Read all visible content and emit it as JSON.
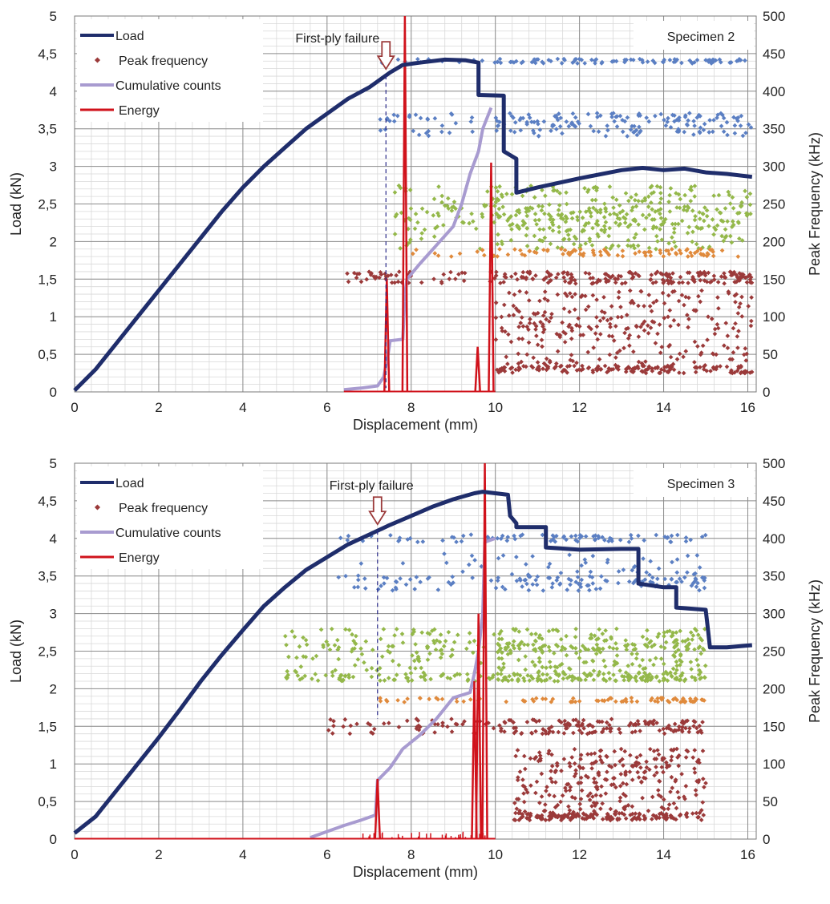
{
  "chart_data": [
    {
      "type": "scatter",
      "specimen_label": "Specimen 2",
      "xlabel": "Displacement (mm)",
      "ylabel": "Load (kN)",
      "y2label": "Peak Frequency (kHz)",
      "xlim": [
        0,
        16.2
      ],
      "ylim": [
        0,
        5
      ],
      "y2lim": [
        0,
        500
      ],
      "xticks": [
        0,
        2,
        4,
        6,
        8,
        10,
        12,
        14,
        16
      ],
      "yticks": [
        "0",
        "0,5",
        "1",
        "1,5",
        "2",
        "2,5",
        "3",
        "3,5",
        "4",
        "4,5",
        "5"
      ],
      "y2ticks": [
        "0",
        "50",
        "100",
        "150",
        "200",
        "250",
        "300",
        "350",
        "400",
        "450",
        "500"
      ],
      "grid": true,
      "legend_position": "top-left",
      "legend": [
        "Load",
        "Peak frequency",
        "Cumulative counts",
        "Energy"
      ],
      "annotation": {
        "text": "First-ply failure",
        "x": 7.4
      },
      "load": {
        "x": [
          0,
          0.5,
          1,
          1.5,
          2,
          2.5,
          3,
          3.5,
          4,
          4.5,
          5,
          5.5,
          6,
          6.5,
          7,
          7.5,
          7.8,
          8.2,
          8.8,
          9.3,
          9.6,
          9.6,
          10.2,
          10.2,
          10.5,
          10.5,
          11,
          12,
          13,
          13.5,
          14,
          14.5,
          15,
          15.5,
          16.1
        ],
        "y": [
          0.02,
          0.3,
          0.65,
          1.0,
          1.35,
          1.7,
          2.05,
          2.4,
          2.72,
          3.0,
          3.25,
          3.5,
          3.7,
          3.9,
          4.05,
          4.25,
          4.35,
          4.38,
          4.42,
          4.41,
          4.38,
          3.95,
          3.94,
          3.2,
          3.1,
          2.65,
          2.72,
          2.84,
          2.95,
          2.98,
          2.95,
          2.97,
          2.92,
          2.9,
          2.86
        ]
      },
      "cumulative_counts": {
        "x": [
          6.4,
          6.8,
          7.2,
          7.35,
          7.45,
          7.5,
          7.8,
          7.85,
          7.9,
          8.2,
          8.6,
          9.0,
          9.2,
          9.4,
          9.6,
          9.7,
          9.9
        ],
        "y": [
          0.03,
          0.05,
          0.08,
          0.2,
          0.5,
          0.68,
          0.7,
          1.3,
          1.5,
          1.7,
          1.95,
          2.2,
          2.5,
          2.9,
          3.2,
          3.5,
          3.78
        ]
      },
      "energy": {
        "spikes": [
          [
            7.42,
            1.5
          ],
          [
            7.85,
            5.1
          ],
          [
            9.58,
            0.6
          ],
          [
            9.9,
            3.05
          ]
        ]
      },
      "frequency_bands": [
        {
          "name": "blue",
          "color": "#5b7fc3",
          "x_range": [
            7.2,
            16.1
          ],
          "bands_khz": [
            [
              350,
              10
            ],
            [
              365,
              6
            ],
            [
              440,
              3
            ]
          ]
        },
        {
          "name": "green",
          "color": "#94b84a",
          "x_range": [
            7.6,
            16.1
          ],
          "bands_khz": [
            [
              220,
              30
            ],
            [
              245,
              30
            ]
          ]
        },
        {
          "name": "orange",
          "color": "#e08a3c",
          "x_range": [
            7.9,
            16.1
          ],
          "bands_khz": [
            [
              185,
              5
            ]
          ]
        },
        {
          "name": "red",
          "color": "#9b3a3a",
          "x_range": [
            6.4,
            16.1
          ],
          "bands_khz": [
            [
              152,
              8
            ]
          ]
        },
        {
          "name": "red_low",
          "color": "#9b3a3a",
          "x_range": [
            10.0,
            16.1
          ],
          "bands_khz": [
            [
              30,
              5
            ],
            [
              60,
              30
            ],
            [
              110,
              25
            ]
          ]
        }
      ]
    },
    {
      "type": "scatter",
      "specimen_label": "Specimen 3",
      "xlabel": "Displacement (mm)",
      "ylabel": "Load (kN)",
      "y2label": "Peak Frequency (kHz)",
      "xlim": [
        0,
        16.2
      ],
      "ylim": [
        0,
        5
      ],
      "y2lim": [
        0,
        500
      ],
      "xticks": [
        0,
        2,
        4,
        6,
        8,
        10,
        12,
        14,
        16
      ],
      "yticks": [
        "0",
        "0,5",
        "1",
        "1,5",
        "2",
        "2,5",
        "3",
        "3,5",
        "4",
        "4,5",
        "5"
      ],
      "y2ticks": [
        "0",
        "50",
        "100",
        "150",
        "200",
        "250",
        "300",
        "350",
        "400",
        "450",
        "500"
      ],
      "grid": true,
      "legend_position": "top-left",
      "legend": [
        "Load",
        "Peak frequency",
        "Cumulative counts",
        "Energy"
      ],
      "annotation": {
        "text": "First-ply failure",
        "x": 7.2
      },
      "load": {
        "x": [
          0,
          0.5,
          1,
          1.5,
          2,
          2.5,
          3,
          3.5,
          4,
          4.5,
          5,
          5.5,
          6,
          6.5,
          7,
          7.5,
          8,
          8.5,
          9,
          9.5,
          9.7,
          10,
          10.3,
          10.35,
          10.5,
          10.5,
          11.2,
          11.2,
          12,
          13,
          13.4,
          13.4,
          14,
          14.3,
          14.3,
          15,
          15.05,
          15.1,
          15.5,
          16.1
        ],
        "y": [
          0.08,
          0.3,
          0.65,
          1.0,
          1.35,
          1.72,
          2.1,
          2.45,
          2.78,
          3.1,
          3.35,
          3.58,
          3.75,
          3.92,
          4.05,
          4.18,
          4.3,
          4.42,
          4.52,
          4.6,
          4.62,
          4.6,
          4.58,
          4.3,
          4.2,
          4.15,
          4.15,
          3.88,
          3.85,
          3.86,
          3.86,
          3.4,
          3.35,
          3.35,
          3.08,
          3.05,
          2.8,
          2.55,
          2.55,
          2.58
        ]
      },
      "cumulative_counts": {
        "x": [
          5.6,
          6.0,
          6.4,
          6.8,
          7.15,
          7.2,
          7.5,
          7.8,
          8.2,
          8.6,
          9.0,
          9.4,
          9.5,
          9.6,
          9.7,
          9.75,
          10.0
        ],
        "y": [
          0.02,
          0.1,
          0.18,
          0.25,
          0.32,
          0.78,
          0.95,
          1.2,
          1.38,
          1.6,
          1.88,
          1.95,
          2.2,
          2.5,
          3.0,
          3.95,
          4.0
        ]
      },
      "energy": {
        "spikes": [
          [
            7.2,
            0.8
          ],
          [
            9.5,
            2.1
          ],
          [
            9.6,
            3.0
          ],
          [
            9.75,
            5.1
          ]
        ]
      },
      "frequency_bands": [
        {
          "name": "blue",
          "color": "#5b7fc3",
          "x_range": [
            6.2,
            15.0
          ],
          "bands_khz": [
            [
              340,
              10
            ],
            [
              360,
              20
            ],
            [
              400,
              5
            ]
          ]
        },
        {
          "name": "green",
          "color": "#94b84a",
          "x_range": [
            5.0,
            15.0
          ],
          "bands_khz": [
            [
              215,
              5
            ],
            [
              240,
              20
            ],
            [
              265,
              15
            ]
          ]
        },
        {
          "name": "orange",
          "color": "#e08a3c",
          "x_range": [
            7.2,
            15.0
          ],
          "bands_khz": [
            [
              185,
              3
            ]
          ]
        },
        {
          "name": "red",
          "color": "#9b3a3a",
          "x_range": [
            5.9,
            15.0
          ],
          "bands_khz": [
            [
              150,
              10
            ]
          ]
        },
        {
          "name": "red_low",
          "color": "#9b3a3a",
          "x_range": [
            10.4,
            15.0
          ],
          "bands_khz": [
            [
              30,
              5
            ],
            [
              55,
              25
            ],
            [
              100,
              20
            ]
          ]
        }
      ]
    }
  ],
  "colors": {
    "load": "#1f2d6b",
    "cumulative": "#a89bd0",
    "energy": "#d0121b",
    "legend_peak_marker": "#9b3a3a",
    "annotation_arrow": "#9b3a3a",
    "dashed_line": "#2a2a8a"
  }
}
